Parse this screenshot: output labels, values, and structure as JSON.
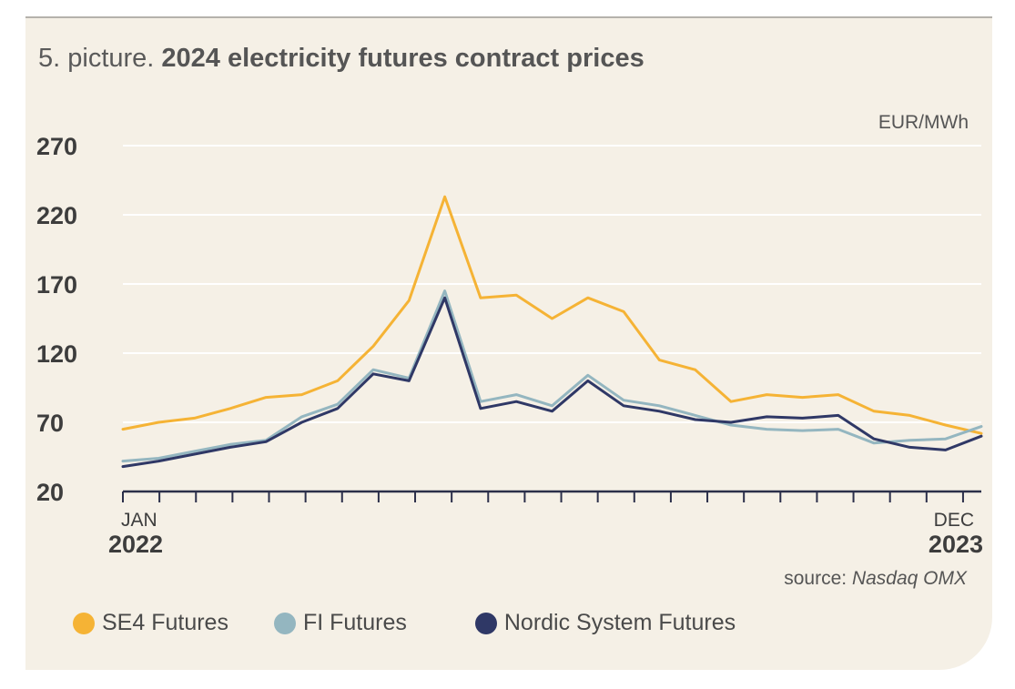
{
  "figure": {
    "title_prefix": "5. picture.",
    "title_main": "2024 electricity futures contract prices",
    "source_label": "source:",
    "source_name": "Nasdaq OMX"
  },
  "chart_data": {
    "type": "line",
    "title": "2024 electricity futures contract prices",
    "unit_label": "EUR/MWh",
    "ylim": [
      20,
      270
    ],
    "yticks": [
      270,
      220,
      170,
      120,
      70,
      20
    ],
    "x_axis": {
      "start_month": "JAN",
      "start_year": "2022",
      "end_month": "DEC",
      "end_year": "2023",
      "range": [
        "2022-01",
        "2023-12"
      ]
    },
    "grid": true,
    "legend_position": "bottom",
    "x": [
      "2022-01",
      "2022-02",
      "2022-03",
      "2022-04",
      "2022-05",
      "2022-06",
      "2022-07",
      "2022-08",
      "2022-08 (late)",
      "2022-09",
      "2022-10",
      "2022-11",
      "2022-12",
      "2023-01",
      "2023-02",
      "2023-03",
      "2023-04",
      "2023-05",
      "2023-06",
      "2023-07",
      "2023-08",
      "2023-09",
      "2023-10",
      "2023-11",
      "2023-12"
    ],
    "series": [
      {
        "name": "SE4 Futures",
        "color": "#f5b335",
        "values": [
          65,
          70,
          73,
          80,
          88,
          90,
          100,
          125,
          158,
          233,
          160,
          162,
          145,
          160,
          150,
          115,
          108,
          85,
          90,
          88,
          90,
          78,
          75,
          68,
          62
        ]
      },
      {
        "name": "FI Futures",
        "color": "#94b6c0",
        "values": [
          42,
          44,
          49,
          54,
          57,
          74,
          83,
          108,
          102,
          165,
          85,
          90,
          82,
          104,
          86,
          82,
          75,
          68,
          65,
          64,
          65,
          55,
          57,
          58,
          67
        ]
      },
      {
        "name": "Nordic System Futures",
        "color": "#2f3866",
        "values": [
          38,
          42,
          47,
          52,
          56,
          70,
          80,
          105,
          100,
          160,
          80,
          85,
          78,
          100,
          82,
          78,
          72,
          70,
          74,
          73,
          75,
          58,
          52,
          50,
          60
        ]
      }
    ]
  }
}
